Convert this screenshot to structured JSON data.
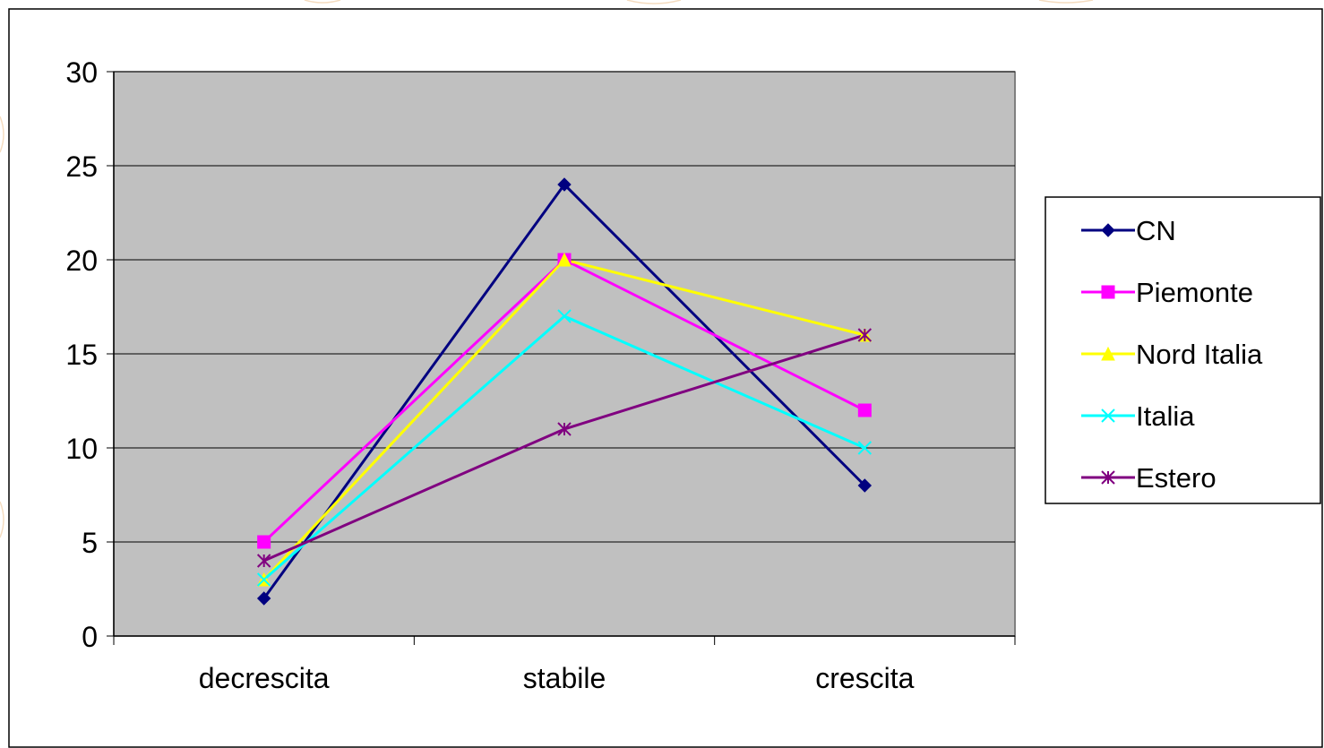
{
  "chart_data": {
    "type": "line",
    "title": "",
    "xlabel": "",
    "ylabel": "",
    "categories": [
      "decrescita",
      "stabile",
      "crescita"
    ],
    "ylim": [
      0,
      30
    ],
    "yticks": [
      "0",
      "5",
      "10",
      "15",
      "20",
      "25",
      "30"
    ],
    "grid": true,
    "legend_position": "right",
    "plot_background": "#c0c0c0",
    "series": [
      {
        "name": "CN",
        "values": [
          2,
          24,
          8
        ],
        "color": "#000080",
        "marker": "diamond"
      },
      {
        "name": "Piemonte",
        "values": [
          5,
          20,
          12
        ],
        "color": "#ff00ff",
        "marker": "square"
      },
      {
        "name": "Nord Italia",
        "values": [
          3,
          20,
          16
        ],
        "color": "#ffff00",
        "marker": "triangle"
      },
      {
        "name": "Italia",
        "values": [
          3,
          17,
          10
        ],
        "color": "#00ffff",
        "marker": "x"
      },
      {
        "name": "Estero",
        "values": [
          4,
          11,
          16
        ],
        "color": "#800080",
        "marker": "star"
      }
    ]
  }
}
